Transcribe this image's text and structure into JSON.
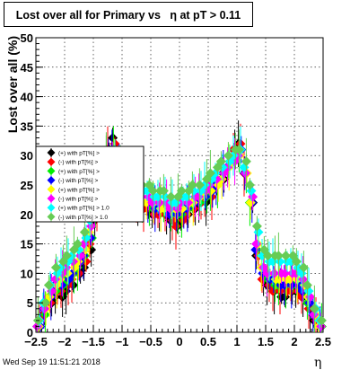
{
  "chart_data": {
    "type": "scatter",
    "title": "Lost over all for Primary vs   η at pT > 0.11",
    "xlabel": "η",
    "ylabel": "Lost over all (%)",
    "xlim": [
      -2.5,
      2.5
    ],
    "ylim": [
      0,
      50
    ],
    "x_ticks": [
      -2.5,
      -2,
      -1.5,
      -1,
      -0.5,
      0,
      0.5,
      1,
      1.5,
      2,
      2.5
    ],
    "x_tick_labels": [
      "−2.5",
      "−2",
      "−1.5",
      "−1",
      "−0.5",
      "0",
      "0.5",
      "1",
      "1.5",
      "2",
      "2.5"
    ],
    "y_ticks": [
      0,
      5,
      10,
      15,
      20,
      25,
      30,
      35,
      40,
      45,
      50
    ],
    "y_tick_labels": [
      "0",
      "5",
      "10",
      "15",
      "20",
      "25",
      "30",
      "35",
      "40",
      "45",
      "50"
    ],
    "grid": true,
    "legend_position": "upper-left",
    "x": [
      -2.45,
      -2.35,
      -2.25,
      -2.15,
      -2.05,
      -1.95,
      -1.85,
      -1.75,
      -1.65,
      -1.55,
      -1.45,
      -1.35,
      -1.25,
      -1.15,
      -1.05,
      -0.95,
      -0.85,
      -0.75,
      -0.65,
      -0.55,
      -0.45,
      -0.35,
      -0.25,
      -0.15,
      -0.05,
      0.05,
      0.15,
      0.25,
      0.35,
      0.45,
      0.55,
      0.65,
      0.75,
      0.85,
      0.95,
      1.05,
      1.15,
      1.25,
      1.35,
      1.45,
      1.55,
      1.65,
      1.75,
      1.85,
      1.95,
      2.05,
      2.15,
      2.25,
      2.35,
      2.45
    ],
    "series": [
      {
        "name": "(+) with pT[%] >",
        "color": "#000000",
        "values": [
          1,
          3,
          5,
          6,
          6,
          7,
          8,
          10,
          11,
          14,
          19,
          26,
          31,
          33,
          29,
          25,
          23,
          22,
          21,
          21,
          20,
          20,
          20,
          19,
          18,
          19,
          20,
          21,
          22,
          22,
          23,
          25,
          26,
          28,
          31,
          32,
          27,
          22,
          13,
          9,
          8,
          7,
          6,
          6,
          7,
          7,
          6,
          4,
          2,
          1
        ]
      },
      {
        "name": "(-) with pT[%] >",
        "color": "#ff0000",
        "values": [
          1,
          3,
          5,
          7,
          7,
          8,
          9,
          10,
          12,
          15,
          20,
          26,
          31,
          32,
          29,
          25,
          24,
          22,
          21,
          21,
          20,
          20,
          20,
          19,
          18,
          19,
          20,
          21,
          22,
          23,
          23,
          25,
          27,
          29,
          31,
          32,
          27,
          22,
          13,
          9,
          8,
          7,
          7,
          7,
          7,
          7,
          6,
          4,
          2,
          1
        ]
      },
      {
        "name": "(+) with pT[%] >",
        "color": "#00ee00",
        "values": [
          1,
          3,
          6,
          7,
          8,
          9,
          10,
          11,
          13,
          16,
          20,
          25,
          30,
          31,
          28,
          25,
          24,
          23,
          22,
          22,
          21,
          21,
          21,
          20,
          20,
          20,
          21,
          22,
          22,
          23,
          24,
          25,
          26,
          28,
          30,
          30,
          27,
          22,
          14,
          10,
          9,
          8,
          8,
          8,
          8,
          8,
          7,
          5,
          3,
          1
        ]
      },
      {
        "name": "(-) with pT[%] >",
        "color": "#0000ff",
        "values": [
          1,
          4,
          6,
          8,
          8,
          9,
          10,
          12,
          13,
          16,
          21,
          26,
          30,
          31,
          28,
          25,
          24,
          23,
          22,
          22,
          21,
          21,
          21,
          20,
          20,
          21,
          21,
          22,
          23,
          23,
          24,
          25,
          27,
          28,
          30,
          31,
          27,
          22,
          14,
          10,
          9,
          9,
          8,
          8,
          8,
          8,
          7,
          5,
          3,
          1
        ]
      },
      {
        "name": "(+) with pT[%] >",
        "color": "#ffff00",
        "values": [
          1,
          4,
          6,
          8,
          9,
          10,
          11,
          12,
          14,
          17,
          21,
          25,
          29,
          30,
          28,
          25,
          24,
          23,
          22,
          22,
          22,
          21,
          21,
          21,
          21,
          21,
          22,
          22,
          23,
          24,
          24,
          25,
          26,
          28,
          29,
          30,
          27,
          22,
          15,
          11,
          10,
          9,
          9,
          9,
          9,
          9,
          8,
          6,
          3,
          1
        ]
      },
      {
        "name": "(-) with pT[%] >",
        "color": "#ff00ff",
        "values": [
          1,
          4,
          7,
          9,
          10,
          11,
          12,
          13,
          15,
          18,
          22,
          26,
          29,
          30,
          28,
          26,
          25,
          24,
          23,
          23,
          22,
          22,
          22,
          21,
          21,
          22,
          22,
          23,
          23,
          24,
          25,
          26,
          27,
          28,
          29,
          30,
          27,
          23,
          15,
          11,
          10,
          10,
          10,
          10,
          10,
          10,
          9,
          6,
          3,
          1
        ]
      },
      {
        "name": "(+) with pT[%] > 1.0",
        "color": "#00ffff",
        "values": [
          2,
          5,
          8,
          10,
          11,
          12,
          13,
          14,
          16,
          19,
          23,
          27,
          30,
          31,
          29,
          27,
          26,
          25,
          24,
          24,
          23,
          23,
          23,
          22,
          22,
          23,
          23,
          24,
          24,
          25,
          26,
          27,
          28,
          29,
          30,
          31,
          28,
          24,
          17,
          13,
          12,
          12,
          12,
          12,
          12,
          11,
          10,
          7,
          4,
          2
        ]
      },
      {
        "name": "(-) with pT[%] > 1.0",
        "color": "#66cc55",
        "values": [
          2,
          5,
          8,
          11,
          12,
          13,
          14,
          15,
          17,
          20,
          23,
          27,
          30,
          31,
          30,
          28,
          27,
          26,
          25,
          25,
          24,
          24,
          24,
          23,
          23,
          24,
          24,
          25,
          25,
          26,
          27,
          28,
          29,
          30,
          31,
          31,
          29,
          25,
          18,
          14,
          13,
          13,
          13,
          13,
          13,
          12,
          11,
          8,
          4,
          2
        ]
      }
    ],
    "legend_entries": [
      {
        "label": "(+) with pT[%] >",
        "color": "#000000"
      },
      {
        "label": "(-) with pT[%] >",
        "color": "#ff0000"
      },
      {
        "label": "(+) with pT[%] >",
        "color": "#00ee00"
      },
      {
        "label": "(-) with pT[%] >",
        "color": "#0000ff"
      },
      {
        "label": "(+) with pT[%] >",
        "color": "#ffff00"
      },
      {
        "label": "(-) with pT[%] >",
        "color": "#ff00ff"
      },
      {
        "label": "(+) with pT[%] > 1.0",
        "color": "#00ffff"
      },
      {
        "label": "(-) with pT[%] > 1.0",
        "color": "#66cc55"
      }
    ]
  },
  "footer": {
    "timestamp": "Wed Sep 19 11:51:21 2018"
  }
}
